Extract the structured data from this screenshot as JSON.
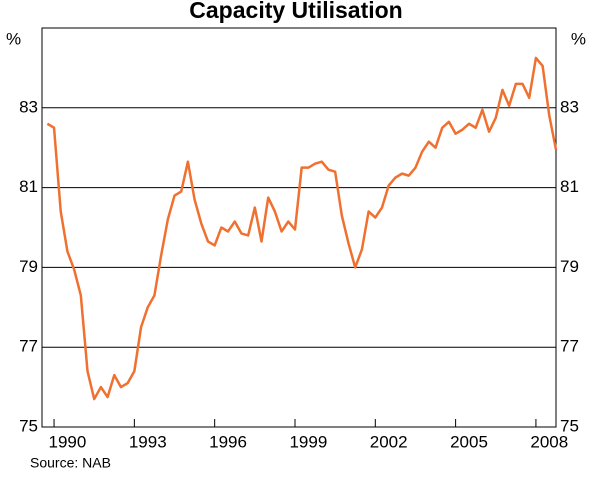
{
  "chart_data": {
    "type": "line",
    "title": "Capacity Utilisation",
    "y_unit": "%",
    "source": "Source: NAB",
    "x": [
      1989.75,
      1990,
      1990.25,
      1990.5,
      1990.75,
      1991,
      1991.25,
      1991.5,
      1991.75,
      1992,
      1992.25,
      1992.5,
      1992.75,
      1993,
      1993.25,
      1993.5,
      1993.75,
      1994,
      1994.25,
      1994.5,
      1994.75,
      1995,
      1995.25,
      1995.5,
      1995.75,
      1996,
      1996.25,
      1996.5,
      1996.75,
      1997,
      1997.25,
      1997.5,
      1997.75,
      1998,
      1998.25,
      1998.5,
      1998.75,
      1999,
      1999.25,
      1999.5,
      1999.75,
      2000,
      2000.25,
      2000.5,
      2000.75,
      2001,
      2001.25,
      2001.5,
      2001.75,
      2002,
      2002.25,
      2002.5,
      2002.75,
      2003,
      2003.25,
      2003.5,
      2003.75,
      2004,
      2004.25,
      2004.5,
      2004.75,
      2005,
      2005.25,
      2005.5,
      2005.75,
      2006,
      2006.25,
      2006.5,
      2006.75,
      2007,
      2007.25,
      2007.5,
      2007.75,
      2008,
      2008.25,
      2008.5,
      2008.75
    ],
    "series": [
      {
        "name": "Capacity Utilisation",
        "color": "#f07030",
        "values": [
          82.6,
          82.5,
          80.4,
          79.4,
          78.95,
          78.3,
          76.4,
          75.7,
          76.0,
          75.75,
          76.3,
          76.0,
          76.1,
          76.4,
          77.5,
          78.0,
          78.3,
          79.3,
          80.2,
          80.8,
          80.9,
          81.65,
          80.7,
          80.1,
          79.65,
          79.55,
          80.0,
          79.9,
          80.15,
          79.85,
          79.8,
          80.5,
          79.65,
          80.75,
          80.4,
          79.9,
          80.15,
          79.95,
          81.5,
          81.5,
          81.6,
          81.65,
          81.45,
          81.4,
          80.3,
          79.6,
          79.0,
          79.45,
          80.4,
          80.25,
          80.5,
          81.05,
          81.25,
          81.35,
          81.3,
          81.5,
          81.9,
          82.15,
          82.0,
          82.5,
          82.65,
          82.35,
          82.45,
          82.6,
          82.5,
          82.95,
          82.4,
          82.75,
          83.45,
          83.05,
          83.6,
          83.6,
          83.25,
          84.25,
          84.05,
          82.8,
          81.95
        ]
      }
    ],
    "xlim": [
      1989.55,
      2008.75
    ],
    "xticks": [
      1990,
      1993,
      1996,
      1999,
      2002,
      2005,
      2008
    ],
    "ylim": [
      75,
      85
    ],
    "yticks": [
      75,
      77,
      79,
      81,
      83
    ],
    "grid": true
  }
}
